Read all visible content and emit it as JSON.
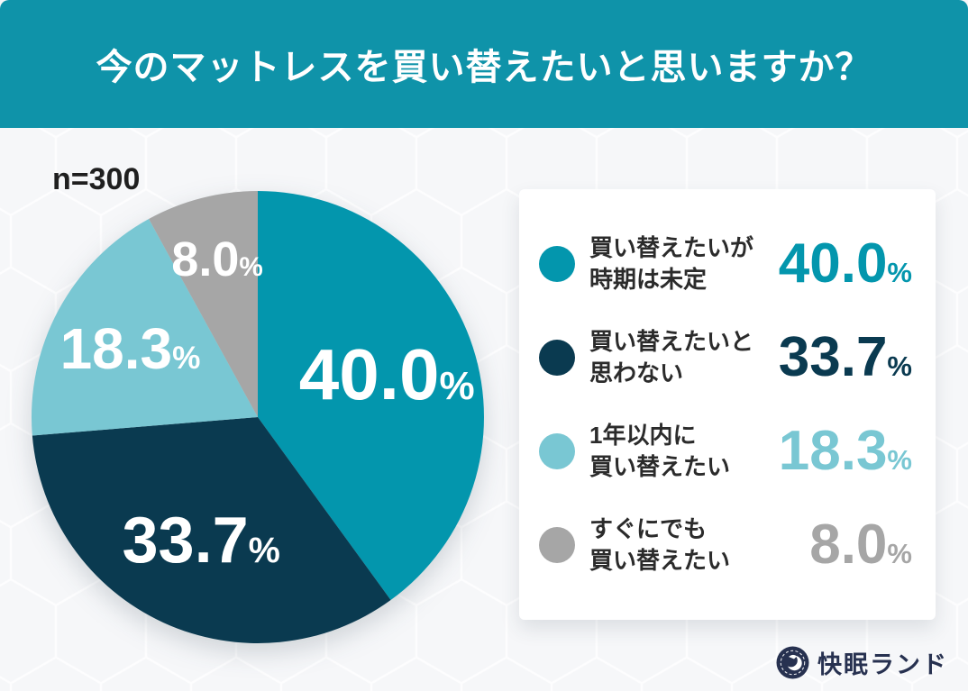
{
  "theme": {
    "banner_bg": "#0f93a9",
    "banner_text": "#ffffff",
    "page_bg": "#eff1f3",
    "card_bg": "#ffffff",
    "text_dark": "#1f1f1f",
    "slice_label_text": "#ffffff",
    "logo_navy": "#273150"
  },
  "header": {
    "title": "今のマットレスを買い替えたいと思いますか？"
  },
  "sample_label": "n=300",
  "chart_data": {
    "type": "pie",
    "title": "今のマットレスを買い替えたいと思いますか？",
    "sample_size": 300,
    "start_angle_deg": 0,
    "direction": "clockwise",
    "legend_position": "right",
    "labels_on_slices": true,
    "segments": [
      {
        "label": "買い替えたいが時期は未定",
        "line1": "買い替えたいが",
        "line2": "時期は未定",
        "value": 40.0,
        "display": "40.0",
        "unit": "%",
        "color": "#0396ad"
      },
      {
        "label": "買い替えたいと思わない",
        "line1": "買い替えたいと",
        "line2": "思わない",
        "value": 33.7,
        "display": "33.7",
        "unit": "%",
        "color": "#0a3a50"
      },
      {
        "label": "1年以内に買い替えたい",
        "line1": "1年以内に",
        "line2": "買い替えたい",
        "value": 18.3,
        "display": "18.3",
        "unit": "%",
        "color": "#79c7d3"
      },
      {
        "label": "すぐにでも買い替えたい",
        "line1": "すぐにでも",
        "line2": "買い替えたい",
        "value": 8.0,
        "display": "8.0",
        "unit": "%",
        "color": "#a6a6a6"
      }
    ]
  },
  "footer": {
    "logo_text": "快眠ランド",
    "logo_icon": "moon-badge"
  }
}
